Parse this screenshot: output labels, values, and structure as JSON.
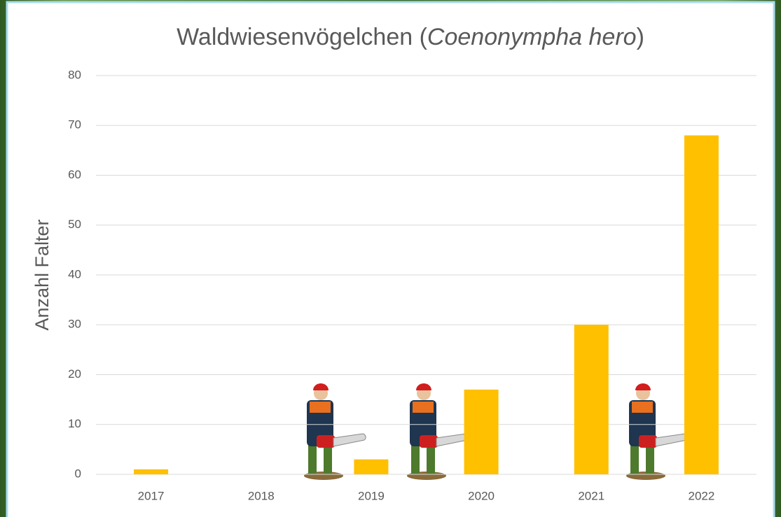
{
  "chart_data": {
    "type": "bar",
    "title": [
      "Waldwiesenvögelchen (",
      "Coenonympha hero",
      ")"
    ],
    "ylabel": "Anzahl Falter",
    "categories": [
      "2017",
      "2018",
      "2019",
      "2020",
      "2021",
      "2022"
    ],
    "values": [
      1,
      0,
      3,
      17,
      30,
      68
    ],
    "color": "#ffc000",
    "ylim": [
      0,
      80
    ],
    "yticks": [
      0,
      10,
      20,
      30,
      40,
      50,
      60,
      70,
      80
    ],
    "grid": true
  }
}
